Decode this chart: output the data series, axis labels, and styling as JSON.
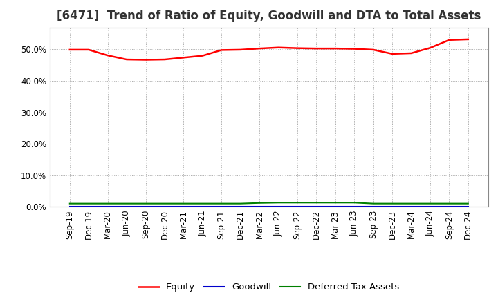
{
  "title": "[6471]  Trend of Ratio of Equity, Goodwill and DTA to Total Assets",
  "x_labels": [
    "Sep-19",
    "Dec-19",
    "Mar-20",
    "Jun-20",
    "Sep-20",
    "Dec-20",
    "Mar-21",
    "Jun-21",
    "Sep-21",
    "Dec-21",
    "Mar-22",
    "Jun-22",
    "Sep-22",
    "Dec-22",
    "Mar-23",
    "Jun-23",
    "Sep-23",
    "Dec-23",
    "Mar-24",
    "Jun-24",
    "Sep-24",
    "Dec-24"
  ],
  "equity": [
    0.499,
    0.499,
    0.481,
    0.468,
    0.467,
    0.468,
    0.474,
    0.48,
    0.498,
    0.499,
    0.503,
    0.506,
    0.504,
    0.503,
    0.503,
    0.502,
    0.499,
    0.486,
    0.488,
    0.505,
    0.53,
    0.532
  ],
  "goodwill": [
    0.0,
    0.0,
    0.0,
    0.0,
    0.0,
    0.0,
    0.0,
    0.0,
    0.0,
    0.0,
    0.0,
    0.0,
    0.0,
    0.0,
    0.0,
    0.0,
    0.0,
    0.0,
    0.0,
    0.0,
    0.0,
    0.0
  ],
  "dta": [
    0.01,
    0.01,
    0.01,
    0.01,
    0.01,
    0.01,
    0.01,
    0.01,
    0.01,
    0.01,
    0.012,
    0.013,
    0.013,
    0.013,
    0.013,
    0.013,
    0.01,
    0.01,
    0.01,
    0.01,
    0.01,
    0.01
  ],
  "equity_color": "#ff0000",
  "goodwill_color": "#0000cc",
  "dta_color": "#008000",
  "bg_color": "#ffffff",
  "plot_bg_color": "#ffffff",
  "grid_color": "#aaaaaa",
  "ylim": [
    0.0,
    0.57
  ],
  "yticks": [
    0.0,
    0.1,
    0.2,
    0.3,
    0.4,
    0.5
  ],
  "legend_labels": [
    "Equity",
    "Goodwill",
    "Deferred Tax Assets"
  ],
  "title_fontsize": 12,
  "axis_fontsize": 8.5,
  "legend_fontsize": 9.5
}
